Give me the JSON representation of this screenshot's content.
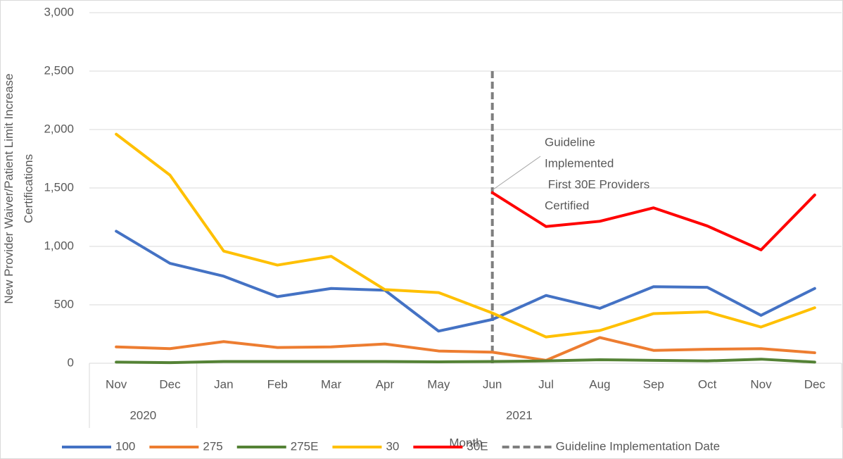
{
  "chart_data": {
    "type": "line",
    "y_label": "New Provider Waiver/Patient Limit Increase Certifications",
    "x_label": "Month",
    "categories": [
      "Nov",
      "Dec",
      "Jan",
      "Feb",
      "Mar",
      "Apr",
      "May",
      "Jun",
      "Jul",
      "Aug",
      "Sep",
      "Oct",
      "Nov",
      "Dec"
    ],
    "x_groups": [
      {
        "label": "2020",
        "count": 2
      },
      {
        "label": "2021",
        "count": 12
      }
    ],
    "series": [
      {
        "name": "100",
        "color": "#4472c4",
        "values": [
          1130,
          855,
          745,
          570,
          640,
          625,
          275,
          375,
          580,
          470,
          655,
          650,
          410,
          640
        ]
      },
      {
        "name": "275",
        "color": "#ed7d31",
        "values": [
          140,
          125,
          185,
          135,
          140,
          165,
          105,
          95,
          25,
          220,
          110,
          120,
          125,
          90
        ]
      },
      {
        "name": "275E",
        "color": "#548235",
        "values": [
          10,
          5,
          15,
          15,
          15,
          15,
          12,
          15,
          20,
          30,
          25,
          20,
          35,
          10
        ]
      },
      {
        "name": "30",
        "color": "#ffc000",
        "values": [
          1960,
          1610,
          960,
          840,
          915,
          630,
          605,
          430,
          225,
          280,
          425,
          440,
          310,
          475
        ]
      },
      {
        "name": "30E",
        "color": "#ff0000",
        "values": [
          null,
          null,
          null,
          null,
          null,
          null,
          null,
          1460,
          1170,
          1215,
          1330,
          1175,
          970,
          1440
        ]
      }
    ],
    "vline": {
      "name": "Guideline Implementation Date",
      "x": "Jun",
      "y": [
        0,
        2500
      ],
      "color": "#7f7f7f"
    },
    "annotation": [
      "Guideline",
      "Implemented",
      " First 30E Providers",
      "Certified"
    ],
    "ylim": [
      0,
      3000
    ],
    "yticks": [
      0,
      {
        "value": 500,
        "label": "500"
      },
      {
        "value": 1000,
        "label": "1,000"
      },
      {
        "value": 1500,
        "label": "1,500"
      },
      {
        "value": 2000,
        "label": "2,000"
      },
      {
        "value": 2500,
        "label": "2,500"
      },
      {
        "value": 3000,
        "label": "3,000"
      }
    ],
    "grid": true,
    "legend": "bottom"
  }
}
